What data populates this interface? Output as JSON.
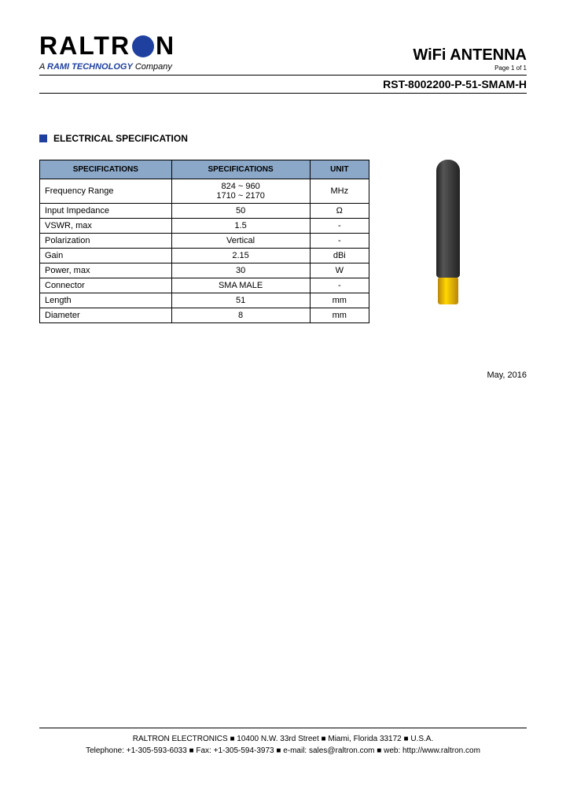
{
  "logo": {
    "name": "RALTRON",
    "tagline_prefix": "A ",
    "tagline_brand": "RAMI TECHNOLOGY",
    "tagline_suffix": " Company"
  },
  "header": {
    "title": "WiFi ANTENNA",
    "page": "Page 1 of 1",
    "part_number": "RST-8002200-P-51-SMAM-H"
  },
  "section": {
    "title": "ELECTRICAL SPECIFICATION"
  },
  "table": {
    "headers": [
      "SPECIFICATIONS",
      "SPECIFICATIONS",
      "UNIT"
    ],
    "col_widths": [
      "40%",
      "42%",
      "18%"
    ],
    "header_bg": "#8ba8c8",
    "rows": [
      {
        "label": "Frequency Range",
        "value": "824 ~ 960\n1710 ~ 2170",
        "unit": "MHz"
      },
      {
        "label": "Input Impedance",
        "value": "50",
        "unit": "Ω"
      },
      {
        "label": "VSWR, max",
        "value": "1.5",
        "unit": "-"
      },
      {
        "label": "Polarization",
        "value": "Vertical",
        "unit": "-"
      },
      {
        "label": "Gain",
        "value": "2.15",
        "unit": "dBi"
      },
      {
        "label": "Power, max",
        "value": "30",
        "unit": "W"
      },
      {
        "label": "Connector",
        "value": "SMA  MALE",
        "unit": "-"
      },
      {
        "label": "Length",
        "value": "51",
        "unit": "mm"
      },
      {
        "label": "Diameter",
        "value": "8",
        "unit": "mm"
      }
    ]
  },
  "date": "May, 2016",
  "footer": {
    "line1": "RALTRON ELECTRONICS ■ 10400 N.W. 33rd Street ■ Miami, Florida 33172 ■ U.S.A.",
    "line2": "Telephone: +1-305-593-6033  ■  Fax: +1-305-594-3973  ■  e-mail: sales@raltron.com  ■  web: http://www.raltron.com"
  },
  "colors": {
    "brand_blue": "#2040a0",
    "table_header_bg": "#8ba8c8",
    "antenna_body": "#2a2a2a",
    "antenna_connector": "#d4af37"
  }
}
